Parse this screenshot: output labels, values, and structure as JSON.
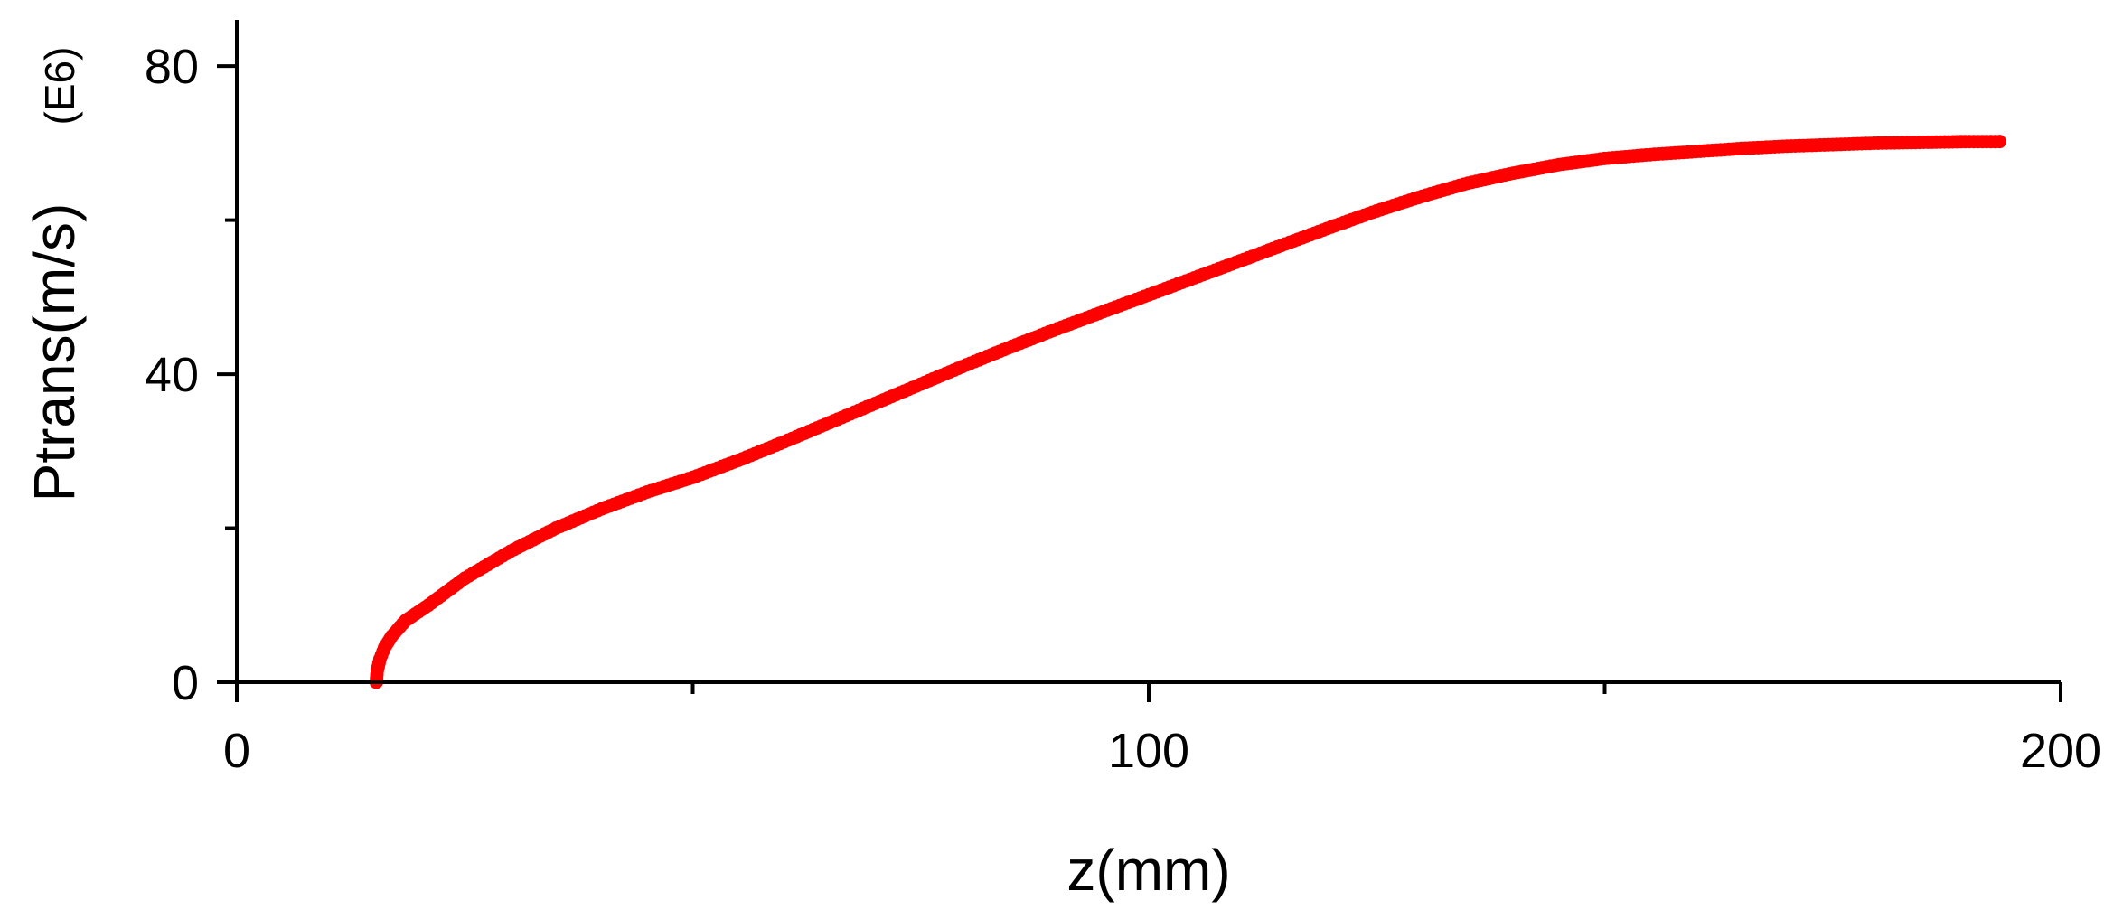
{
  "chart_data": {
    "type": "scatter",
    "xlabel": "z(mm)",
    "ylabel": "Ptrans(m/s)",
    "ylabel_unit": "(E6)",
    "xlim": [
      0,
      200
    ],
    "ylim": [
      0,
      86
    ],
    "x_ticks": [
      0,
      100,
      200
    ],
    "x_minor_ticks": [
      50,
      150
    ],
    "y_ticks": [
      0,
      40,
      80
    ],
    "y_minor_ticks": [
      20,
      60
    ],
    "grid": false,
    "legend": "none",
    "series": [
      {
        "color": "#ff0000",
        "marker": "filled-circle",
        "points": [
          [
            15.3,
            0
          ],
          [
            15.4,
            1.5
          ],
          [
            15.7,
            3
          ],
          [
            16.2,
            4.5
          ],
          [
            17,
            6
          ],
          [
            18.5,
            8
          ],
          [
            21,
            10
          ],
          [
            25,
            13.5
          ],
          [
            30,
            17
          ],
          [
            35,
            20
          ],
          [
            40,
            22.5
          ],
          [
            45,
            24.7
          ],
          [
            50,
            26.6
          ],
          [
            55,
            28.8
          ],
          [
            60,
            31.2
          ],
          [
            65,
            33.7
          ],
          [
            70,
            36.2
          ],
          [
            75,
            38.7
          ],
          [
            80,
            41.2
          ],
          [
            85,
            43.6
          ],
          [
            90,
            45.9
          ],
          [
            95,
            48.1
          ],
          [
            100,
            50.3
          ],
          [
            105,
            52.5
          ],
          [
            110,
            54.7
          ],
          [
            115,
            56.9
          ],
          [
            120,
            59.1
          ],
          [
            125,
            61.2
          ],
          [
            130,
            63.1
          ],
          [
            135,
            64.8
          ],
          [
            140,
            66.1
          ],
          [
            145,
            67.2
          ],
          [
            150,
            68.0
          ],
          [
            155,
            68.5
          ],
          [
            160,
            68.9
          ],
          [
            165,
            69.3
          ],
          [
            170,
            69.6
          ],
          [
            175,
            69.8
          ],
          [
            180,
            70.0
          ],
          [
            185,
            70.1
          ],
          [
            190,
            70.2
          ],
          [
            193.3,
            70.2
          ]
        ]
      }
    ]
  }
}
